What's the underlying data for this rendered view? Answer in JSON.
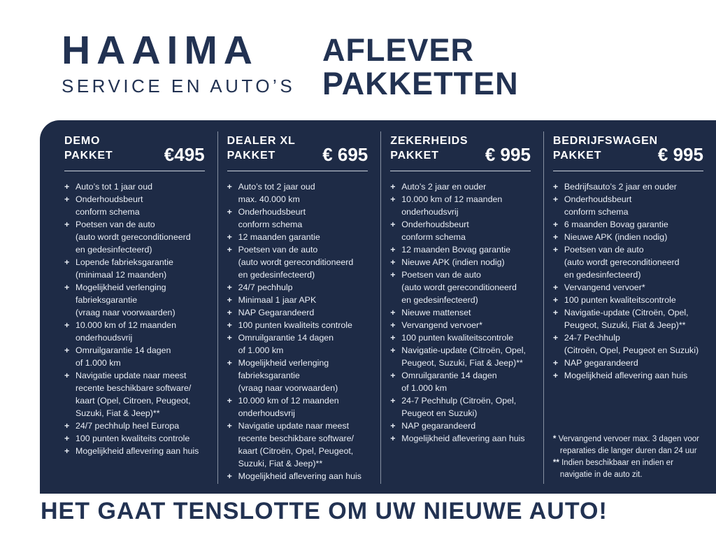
{
  "colors": {
    "navy_text": "#223252",
    "panel_bg": "#1e2b46",
    "panel_text": "#e9edf4",
    "white": "#ffffff",
    "divider": "#ccd3dd"
  },
  "bullet": "+",
  "brand": {
    "name": "HAAIMA",
    "subtitle": "SERVICE EN AUTO’S"
  },
  "page_title": {
    "line1": "AFLEVER",
    "line2": "PAKKETTEN"
  },
  "packages": [
    {
      "title_line1": "DEMO",
      "title_line2": "PAKKET",
      "price": "€495",
      "items": [
        [
          "Auto’s tot 1 jaar oud"
        ],
        [
          "Onderhoudsbeurt",
          "conform schema"
        ],
        [
          "Poetsen van de auto",
          "(auto wordt gereconditioneerd",
          "en gedesinfecteerd)"
        ],
        [
          "Lopende fabrieksgarantie",
          "(minimaal 12 maanden)"
        ],
        [
          "Mogelijkheid verlenging",
          "fabrieksgarantie",
          "(vraag naar voorwaarden)"
        ],
        [
          "10.000 km of 12 maanden",
          "onderhoudsvrij"
        ],
        [
          "Omruilgarantie 14 dagen",
          "of 1.000 km"
        ],
        [
          "Navigatie update naar meest",
          "recente beschikbare software/",
          "kaart (Opel, Citroen,  Peugeot,",
          "Suzuki, Fiat & Jeep)**"
        ],
        [
          "24/7 pechhulp heel Europa"
        ],
        [
          "100 punten kwaliteits controle"
        ],
        [
          "Mogelijkheid aflevering aan huis"
        ]
      ]
    },
    {
      "title_line1": "DEALER XL",
      "title_line2": "PAKKET",
      "price": "€ 695",
      "items": [
        [
          "Auto’s tot 2 jaar oud",
          "max. 40.000 km"
        ],
        [
          "Onderhoudsbeurt",
          "conform schema"
        ],
        [
          "12 maanden garantie"
        ],
        [
          "Poetsen van de auto",
          "(auto wordt gereconditioneerd",
          "en gedesinfecteerd)"
        ],
        [
          "24/7 pechhulp"
        ],
        [
          "Minimaal 1 jaar APK"
        ],
        [
          "NAP Gegarandeerd"
        ],
        [
          "100 punten kwaliteits controle"
        ],
        [
          "Omruilgarantie 14 dagen",
          "of 1.000 km"
        ],
        [
          "Mogelijkheid verlenging",
          "fabrieksgarantie",
          "(vraag naar voorwaarden)"
        ],
        [
          "10.000 km of 12 maanden",
          "onderhoudsvrij"
        ],
        [
          "Navigatie update naar meest",
          "recente beschikbare software/",
          "kaart (Citroën, Opel, Peugeot,",
          "Suzuki, Fiat & Jeep)**"
        ],
        [
          "Mogelijkheid aflevering aan huis"
        ]
      ]
    },
    {
      "title_line1": "ZEKERHEIDS",
      "title_line2": "PAKKET",
      "price": "€ 995",
      "items": [
        [
          "Auto’s 2 jaar en ouder"
        ],
        [
          "10.000 km of 12 maanden",
          "onderhoudsvrij"
        ],
        [
          "Onderhoudsbeurt",
          "conform schema"
        ],
        [
          "12 maanden Bovag garantie"
        ],
        [
          "Nieuwe APK (indien nodig)"
        ],
        [
          "Poetsen van de auto",
          "(auto wordt gereconditioneerd",
          "en gedesinfecteerd)"
        ],
        [
          "Nieuwe mattenset"
        ],
        [
          "Vervangend vervoer*"
        ],
        [
          "100 punten kwaliteitscontrole"
        ],
        [
          "Navigatie-update (Citroën, Opel,",
          "Peugeot, Suzuki, Fiat & Jeep)**"
        ],
        [
          "Omruilgarantie 14 dagen",
          "of 1.000 km"
        ],
        [
          "24-7 Pechhulp (Citroën, Opel,",
          "Peugeot en Suzuki)"
        ],
        [
          "NAP gegarandeerd"
        ],
        [
          "Mogelijkheid aflevering aan huis"
        ]
      ]
    },
    {
      "title_line1": "BEDRIJFSWAGEN",
      "title_line2": "PAKKET",
      "price": "€ 995",
      "items": [
        [
          "Bedrijfsauto’s 2 jaar en ouder"
        ],
        [
          "Onderhoudsbeurt",
          "conform schema"
        ],
        [
          "6 maanden Bovag garantie"
        ],
        [
          "Nieuwe APK (indien nodig)"
        ],
        [
          "Poetsen van de auto",
          "(auto wordt gereconditioneerd",
          "en gedesinfecteerd)"
        ],
        [
          "Vervangend vervoer*"
        ],
        [
          "100 punten kwaliteitscontrole"
        ],
        [
          "Navigatie-update (Citroën, Opel,",
          "Peugeot, Suzuki, Fiat & Jeep)**"
        ],
        [
          "24-7 Pechhulp",
          "(Citroën, Opel, Peugeot en Suzuki)"
        ],
        [
          "NAP gegarandeerd"
        ],
        [
          "Mogelijkheid aflevering aan huis"
        ]
      ]
    }
  ],
  "footnotes": [
    {
      "marker": "*",
      "lines": [
        "Vervangend vervoer max. 3 dagen voor",
        "reparaties die langer duren dan 24 uur"
      ]
    },
    {
      "marker": "**",
      "lines": [
        "Indien beschikbaar en indien er",
        "navigatie in de auto zit."
      ]
    }
  ],
  "tagline": "HET GAAT TENSLOTTE OM UW NIEUWE AUTO!"
}
